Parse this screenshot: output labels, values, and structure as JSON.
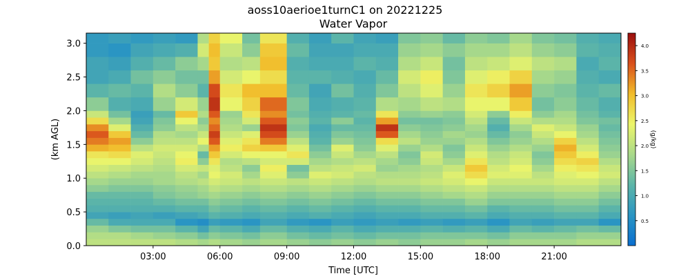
{
  "chart_data": {
    "type": "heatmap",
    "title": "aoss10aerioe1turnC1 on 20221225",
    "subtitle": "Water Vapor",
    "xlabel": "Time [UTC]",
    "ylabel": "(km AGL)",
    "colorbar_label": "(g/kg)",
    "xlim": [
      0,
      24
    ],
    "ylim": [
      0.0,
      3.15
    ],
    "clim": [
      0.0,
      4.25
    ],
    "x_ticks": [
      {
        "value": 3,
        "label": "03:00"
      },
      {
        "value": 6,
        "label": "06:00"
      },
      {
        "value": 9,
        "label": "09:00"
      },
      {
        "value": 12,
        "label": "12:00"
      },
      {
        "value": 15,
        "label": "15:00"
      },
      {
        "value": 18,
        "label": "18:00"
      },
      {
        "value": 21,
        "label": "21:00"
      }
    ],
    "y_ticks": [
      {
        "value": 0.0,
        "label": "0.0"
      },
      {
        "value": 0.5,
        "label": "0.5"
      },
      {
        "value": 1.0,
        "label": "1.0"
      },
      {
        "value": 1.5,
        "label": "1.5"
      },
      {
        "value": 2.0,
        "label": "2.0"
      },
      {
        "value": 2.5,
        "label": "2.5"
      },
      {
        "value": 3.0,
        "label": "3.0"
      }
    ],
    "colorbar_ticks": [
      {
        "value": 0.5,
        "label": "0.5"
      },
      {
        "value": 1.0,
        "label": "1.0"
      },
      {
        "value": 1.5,
        "label": "1.5"
      },
      {
        "value": 2.0,
        "label": "2.0"
      },
      {
        "value": 2.5,
        "label": "2.5"
      },
      {
        "value": 3.0,
        "label": "3.0"
      },
      {
        "value": 3.5,
        "label": "3.5"
      },
      {
        "value": 4.0,
        "label": "4.0"
      }
    ],
    "colormap": [
      "#0a6fd0",
      "#2a95c3",
      "#5cb5a8",
      "#a9d98a",
      "#ecf56a",
      "#f1bc2a",
      "#d9501c",
      "#9a0e0e"
    ],
    "height_levels": [
      0.0,
      0.1,
      0.2,
      0.3,
      0.4,
      0.5,
      0.6,
      0.7,
      0.8,
      0.9,
      1.0,
      1.1,
      1.2,
      1.3,
      1.4,
      1.5,
      1.6,
      1.7,
      1.8,
      1.9,
      2.0,
      2.2,
      2.4,
      2.6,
      2.8,
      3.0
    ],
    "time_columns": [
      {
        "t": 0.0,
        "col": [
          2.0,
          1.9,
          1.7,
          1.3,
          0.9,
          1.1,
          1.2,
          1.3,
          1.6,
          1.8,
          2.0,
          2.2,
          2.4,
          2.6,
          3.1,
          3.4,
          3.6,
          3.3,
          2.7,
          2.1,
          1.6,
          1.2,
          0.9,
          0.9,
          0.7,
          0.7
        ]
      },
      {
        "t": 1.0,
        "col": [
          2.0,
          1.9,
          1.5,
          1.0,
          0.8,
          1.1,
          1.2,
          1.3,
          1.5,
          1.7,
          1.9,
          2.1,
          2.4,
          2.7,
          3.0,
          3.2,
          2.9,
          2.3,
          1.8,
          1.4,
          1.1,
          1.3,
          1.0,
          0.8,
          0.6,
          0.8
        ]
      },
      {
        "t": 2.0,
        "col": [
          2.0,
          1.8,
          1.4,
          1.0,
          0.9,
          1.1,
          1.2,
          1.3,
          1.5,
          1.7,
          1.8,
          2.0,
          2.2,
          2.3,
          2.0,
          1.6,
          1.3,
          1.1,
          0.9,
          0.8,
          1.0,
          1.2,
          1.4,
          1.1,
          0.9,
          0.7
        ]
      },
      {
        "t": 3.0,
        "col": [
          2.0,
          1.7,
          1.4,
          1.0,
          0.8,
          1.1,
          1.3,
          1.5,
          1.6,
          1.8,
          1.8,
          1.9,
          2.0,
          2.1,
          2.2,
          2.0,
          1.9,
          1.6,
          1.5,
          1.3,
          1.7,
          1.9,
          1.6,
          1.3,
          1.0,
          0.8
        ]
      },
      {
        "t": 4.0,
        "col": [
          1.9,
          1.6,
          1.2,
          0.6,
          0.9,
          1.2,
          1.4,
          1.6,
          1.7,
          1.9,
          2.0,
          2.2,
          2.5,
          2.4,
          2.2,
          2.0,
          1.8,
          2.0,
          2.4,
          2.9,
          2.2,
          1.6,
          1.4,
          1.6,
          1.1,
          0.7
        ]
      },
      {
        "t": 5.0,
        "col": [
          1.8,
          1.4,
          0.9,
          0.5,
          1.0,
          1.2,
          1.4,
          1.7,
          1.8,
          2.0,
          1.8,
          2.1,
          1.6,
          1.3,
          1.9,
          2.4,
          2.1,
          1.8,
          1.6,
          1.9,
          1.7,
          1.2,
          1.4,
          1.8,
          2.2,
          1.9
        ]
      },
      {
        "t": 5.5,
        "col": [
          1.9,
          1.6,
          1.3,
          0.8,
          1.2,
          1.4,
          1.6,
          1.8,
          2.0,
          2.2,
          2.4,
          2.3,
          2.6,
          2.9,
          3.2,
          3.6,
          3.8,
          3.5,
          3.3,
          3.6,
          3.9,
          3.7,
          3.2,
          2.9,
          3.0,
          2.8
        ]
      },
      {
        "t": 6.0,
        "col": [
          1.8,
          1.5,
          1.2,
          0.7,
          1.1,
          1.3,
          1.5,
          1.7,
          1.9,
          2.1,
          2.2,
          2.0,
          1.9,
          2.2,
          2.5,
          2.3,
          2.1,
          1.9,
          1.8,
          1.7,
          2.4,
          2.6,
          2.2,
          1.9,
          2.1,
          2.4
        ]
      },
      {
        "t": 7.0,
        "col": [
          1.7,
          1.4,
          1.0,
          0.6,
          1.0,
          1.2,
          1.4,
          1.6,
          1.8,
          2.0,
          1.8,
          1.6,
          2.0,
          2.4,
          2.8,
          2.6,
          2.3,
          1.7,
          2.2,
          2.6,
          2.8,
          3.0,
          2.4,
          2.0,
          1.6,
          1.4
        ]
      },
      {
        "t": 7.8,
        "col": [
          1.8,
          1.6,
          1.3,
          0.9,
          1.1,
          1.3,
          1.5,
          1.7,
          1.9,
          2.1,
          2.3,
          2.5,
          2.2,
          2.4,
          2.9,
          3.4,
          3.7,
          3.9,
          3.6,
          3.3,
          3.5,
          3.0,
          2.7,
          3.0,
          2.9,
          2.6
        ]
      },
      {
        "t": 9.0,
        "col": [
          1.7,
          1.4,
          1.1,
          0.7,
          1.0,
          1.2,
          1.4,
          1.6,
          1.8,
          2.0,
          1.6,
          1.4,
          2.2,
          2.6,
          2.3,
          2.0,
          1.7,
          1.5,
          1.6,
          1.4,
          1.5,
          1.3,
          1.2,
          1.1,
          1.3,
          1.1
        ]
      },
      {
        "t": 10.0,
        "col": [
          1.6,
          1.3,
          1.0,
          0.6,
          1.1,
          1.3,
          1.5,
          1.7,
          1.9,
          2.1,
          2.3,
          2.0,
          1.8,
          1.6,
          1.4,
          1.2,
          1.1,
          1.0,
          1.2,
          1.1,
          1.0,
          0.9,
          1.2,
          1.0,
          0.9,
          0.8
        ]
      },
      {
        "t": 11.0,
        "col": [
          1.7,
          1.4,
          1.2,
          0.8,
          1.0,
          1.2,
          1.4,
          1.6,
          1.8,
          2.0,
          2.2,
          2.1,
          1.9,
          2.1,
          2.3,
          1.7,
          1.5,
          1.3,
          1.6,
          1.2,
          1.1,
          1.4,
          1.1,
          1.0,
          0.9,
          1.2
        ]
      },
      {
        "t": 12.0,
        "col": [
          1.6,
          1.3,
          1.0,
          0.7,
          0.9,
          1.1,
          1.3,
          1.5,
          1.7,
          1.9,
          2.0,
          2.2,
          2.0,
          1.8,
          1.6,
          1.5,
          1.4,
          1.3,
          1.2,
          1.3,
          1.2,
          1.1,
          1.0,
          1.2,
          1.0,
          0.9
        ]
      },
      {
        "t": 13.0,
        "col": [
          1.7,
          1.4,
          1.1,
          0.8,
          1.0,
          1.2,
          1.4,
          1.6,
          1.8,
          2.0,
          1.9,
          1.7,
          1.8,
          2.0,
          2.3,
          2.7,
          3.6,
          3.9,
          3.2,
          2.6,
          1.9,
          1.5,
          1.3,
          1.1,
          1.0,
          0.8
        ]
      },
      {
        "t": 14.0,
        "col": [
          1.6,
          1.4,
          1.1,
          0.7,
          1.0,
          1.2,
          1.4,
          1.6,
          1.8,
          2.0,
          1.9,
          1.8,
          1.6,
          1.5,
          1.7,
          2.0,
          1.8,
          1.6,
          1.4,
          1.6,
          1.8,
          2.0,
          2.2,
          1.9,
          1.7,
          1.5
        ]
      },
      {
        "t": 15.0,
        "col": [
          1.7,
          1.5,
          1.2,
          0.8,
          1.1,
          1.3,
          1.5,
          1.7,
          1.9,
          2.1,
          2.0,
          1.9,
          2.1,
          2.2,
          1.9,
          1.7,
          1.6,
          1.5,
          1.4,
          1.7,
          2.0,
          2.3,
          2.5,
          2.1,
          1.8,
          1.6
        ]
      },
      {
        "t": 16.0,
        "col": [
          1.7,
          1.5,
          1.1,
          0.7,
          1.1,
          1.3,
          1.5,
          1.8,
          2.0,
          2.2,
          2.3,
          2.1,
          1.8,
          1.6,
          1.5,
          1.7,
          1.8,
          1.6,
          1.5,
          1.6,
          1.9,
          1.7,
          1.5,
          1.4,
          1.6,
          1.3
        ]
      },
      {
        "t": 17.0,
        "col": [
          1.8,
          1.5,
          1.2,
          0.8,
          1.2,
          1.4,
          1.7,
          1.9,
          2.1,
          2.4,
          2.7,
          2.9,
          2.6,
          2.3,
          2.1,
          1.9,
          1.7,
          1.8,
          2.0,
          2.2,
          2.4,
          2.6,
          2.3,
          2.0,
          1.8,
          1.6
        ]
      },
      {
        "t": 18.0,
        "col": [
          1.7,
          1.4,
          1.0,
          0.6,
          1.0,
          1.2,
          1.5,
          1.7,
          1.9,
          2.1,
          2.3,
          2.2,
          2.0,
          1.9,
          1.7,
          1.5,
          1.3,
          1.1,
          1.3,
          1.6,
          2.4,
          2.8,
          2.5,
          2.1,
          1.8,
          1.5
        ]
      },
      {
        "t": 19.0,
        "col": [
          1.8,
          1.6,
          1.3,
          0.9,
          1.1,
          1.3,
          1.5,
          1.7,
          1.9,
          2.1,
          2.3,
          2.4,
          2.2,
          2.1,
          1.9,
          1.7,
          1.6,
          1.8,
          2.1,
          2.5,
          2.9,
          3.2,
          2.8,
          2.3,
          2.0,
          1.8
        ]
      },
      {
        "t": 20.0,
        "col": [
          1.8,
          1.6,
          1.2,
          0.8,
          1.1,
          1.3,
          1.5,
          1.7,
          1.9,
          2.1,
          2.0,
          1.8,
          1.6,
          1.5,
          1.7,
          1.9,
          2.1,
          2.3,
          1.9,
          1.6,
          1.4,
          1.6,
          1.8,
          2.0,
          1.7,
          1.5
        ]
      },
      {
        "t": 21.0,
        "col": [
          1.8,
          1.6,
          1.3,
          0.9,
          1.2,
          1.4,
          1.6,
          1.8,
          2.0,
          2.2,
          2.3,
          2.5,
          2.7,
          2.9,
          3.1,
          2.8,
          2.4,
          2.1,
          1.9,
          1.8,
          1.6,
          1.5,
          1.7,
          1.9,
          1.6,
          1.4
        ]
      },
      {
        "t": 22.0,
        "col": [
          1.9,
          1.7,
          1.4,
          0.9,
          1.2,
          1.4,
          1.6,
          1.8,
          2.0,
          2.2,
          2.4,
          2.6,
          2.8,
          2.5,
          2.2,
          2.0,
          1.8,
          1.7,
          1.5,
          1.4,
          1.3,
          1.2,
          1.1,
          1.0,
          1.2,
          1.1
        ]
      },
      {
        "t": 23.0,
        "col": [
          1.9,
          1.7,
          1.3,
          0.6,
          1.0,
          1.2,
          1.4,
          1.6,
          1.8,
          2.0,
          2.2,
          2.1,
          1.9,
          1.7,
          1.6,
          1.5,
          1.4,
          1.3,
          1.4,
          1.2,
          1.1,
          1.3,
          1.0,
          1.2,
          1.1,
          1.0
        ]
      },
      {
        "t": 24.0,
        "col": [
          1.9,
          1.7,
          1.3,
          0.6,
          1.0,
          1.2,
          1.4,
          1.6,
          1.8,
          2.0,
          2.2,
          2.1,
          1.9,
          1.7,
          1.6,
          1.5,
          1.4,
          1.3,
          1.4,
          1.2,
          1.1,
          1.3,
          1.0,
          1.2,
          1.1,
          1.0
        ]
      }
    ]
  }
}
